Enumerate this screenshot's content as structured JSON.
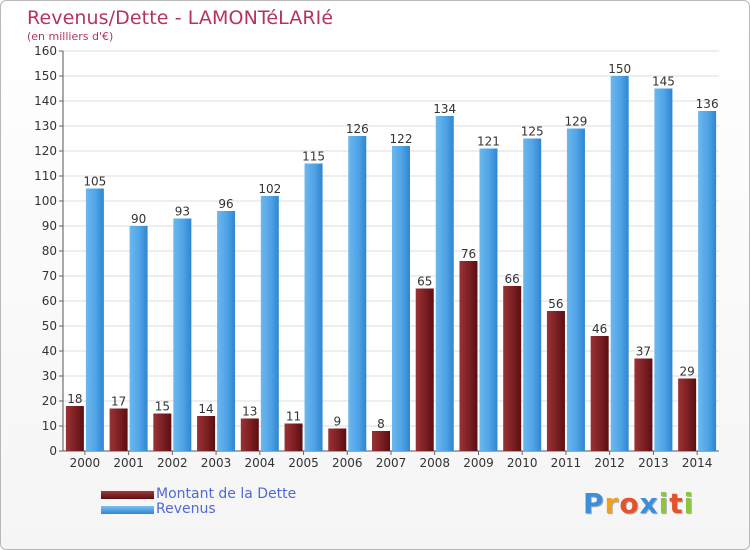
{
  "chart_data": {
    "type": "bar",
    "title": "Revenus/Dette - LAMONTéLARIé",
    "subtitle": "(en milliers d'€)",
    "categories": [
      "2000",
      "2001",
      "2002",
      "2003",
      "2004",
      "2005",
      "2006",
      "2007",
      "2008",
      "2009",
      "2010",
      "2011",
      "2012",
      "2013",
      "2014"
    ],
    "series": [
      {
        "name": "Montant de la Dette",
        "color": "#7b1f22",
        "values": [
          18,
          17,
          15,
          14,
          13,
          11,
          9,
          8,
          65,
          76,
          66,
          56,
          46,
          37,
          29
        ]
      },
      {
        "name": "Revenus",
        "color": "#4fa3e6",
        "values": [
          105,
          90,
          93,
          96,
          102,
          115,
          126,
          122,
          134,
          121,
          125,
          129,
          150,
          145,
          136
        ]
      }
    ],
    "ylim": [
      0,
      160
    ],
    "yticks": [
      0,
      10,
      20,
      30,
      40,
      50,
      60,
      70,
      80,
      90,
      100,
      110,
      120,
      130,
      140,
      150,
      160
    ],
    "grid": true,
    "legend_position": "bottom-left"
  },
  "logo": {
    "letters": [
      "P",
      "r",
      "o",
      "x",
      "i",
      "t",
      "i"
    ],
    "colors": [
      "#3d8ed8",
      "#f0a020",
      "#e4542c",
      "#3d8ed8",
      "#8cc63f",
      "#e4542c",
      "#8cc63f"
    ]
  }
}
